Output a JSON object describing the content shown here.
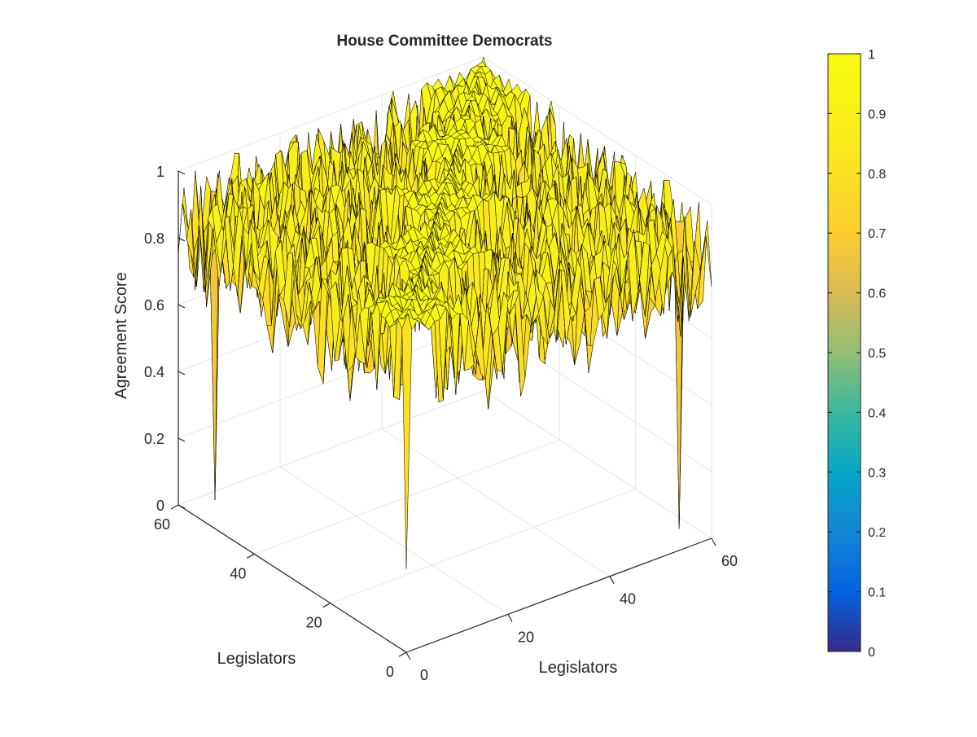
{
  "chart_data": {
    "type": "surface",
    "title": "House Committee Democrats",
    "xlabel": "Legislators",
    "ylabel": "Legislators",
    "zlabel": "Agreement Score",
    "xlim": [
      0,
      60
    ],
    "ylim": [
      0,
      60
    ],
    "zlim": [
      0,
      1
    ],
    "x_ticks": [
      "0",
      "20",
      "40",
      "60"
    ],
    "y_ticks": [
      "0",
      "20",
      "40",
      "60"
    ],
    "z_ticks": [
      "0",
      "0.2",
      "0.4",
      "0.6",
      "0.8",
      "1"
    ],
    "grid": true,
    "grid_size": [
      55,
      55
    ],
    "value_range": [
      0.0,
      1.0
    ],
    "typical_range": [
      0.6,
      1.0
    ],
    "block_size_legislators": 11,
    "dips": [
      {
        "row": 5,
        "col": 52,
        "z": 0.0
      },
      {
        "row": 52,
        "col": 5,
        "z": 0.0
      },
      {
        "row": 0,
        "col": 0,
        "z": 0.25
      }
    ],
    "colormap": "parula",
    "colorbar": {
      "ticks": [
        "0",
        "0.1",
        "0.2",
        "0.3",
        "0.4",
        "0.5",
        "0.6",
        "0.7",
        "0.8",
        "0.9",
        "1"
      ],
      "range": [
        0,
        1
      ],
      "placement": "right"
    }
  },
  "colors": {
    "axis": "#262626",
    "grid": "#e6e6e6",
    "edge": "#000000"
  }
}
